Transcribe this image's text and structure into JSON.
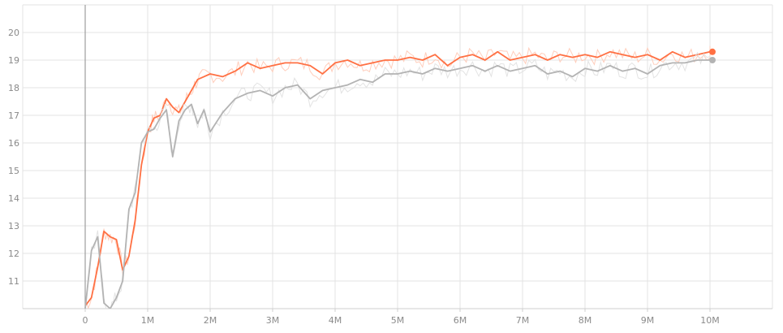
{
  "chart_data": {
    "type": "line",
    "title": "",
    "xlabel": "",
    "ylabel": "",
    "x_ticks": [
      "0",
      "1M",
      "2M",
      "3M",
      "4M",
      "5M",
      "6M",
      "7M",
      "8M",
      "9M",
      "10M"
    ],
    "x_tick_values": [
      0,
      1000000,
      2000000,
      3000000,
      4000000,
      5000000,
      6000000,
      7000000,
      8000000,
      9000000,
      10000000
    ],
    "y_ticks": [
      "11",
      "12",
      "13",
      "14",
      "15",
      "16",
      "17",
      "18",
      "19",
      "20"
    ],
    "y_tick_values": [
      11,
      12,
      13,
      14,
      15,
      16,
      17,
      18,
      19,
      20
    ],
    "xlim": [
      -1000000,
      11000000
    ],
    "ylim": [
      10,
      21
    ],
    "grid": true,
    "series": [
      {
        "color": "#ff7043",
        "raw_color": "#ffc9b5",
        "x": [
          0,
          100000,
          200000,
          300000,
          400000,
          500000,
          600000,
          700000,
          800000,
          900000,
          1000000,
          1100000,
          1200000,
          1300000,
          1400000,
          1500000,
          1600000,
          1700000,
          1800000,
          1900000,
          2000000,
          2200000,
          2400000,
          2600000,
          2800000,
          3000000,
          3200000,
          3400000,
          3600000,
          3800000,
          4000000,
          4200000,
          4400000,
          4600000,
          4800000,
          5000000,
          5200000,
          5400000,
          5600000,
          5800000,
          6000000,
          6200000,
          6400000,
          6600000,
          6800000,
          7000000,
          7200000,
          7400000,
          7600000,
          7800000,
          8000000,
          8200000,
          8400000,
          8600000,
          8800000,
          9000000,
          9200000,
          9400000,
          9600000,
          9800000,
          10000000
        ],
        "y": [
          10.1,
          10.4,
          11.5,
          12.8,
          12.6,
          12.5,
          11.4,
          11.9,
          13.2,
          15.2,
          16.4,
          16.9,
          17.0,
          17.6,
          17.3,
          17.1,
          17.5,
          17.9,
          18.3,
          18.4,
          18.5,
          18.4,
          18.6,
          18.9,
          18.7,
          18.8,
          18.9,
          18.9,
          18.8,
          18.5,
          18.9,
          19.0,
          18.8,
          18.9,
          19.0,
          19.0,
          19.1,
          19.0,
          19.2,
          18.8,
          19.1,
          19.2,
          19.0,
          19.3,
          19.0,
          19.1,
          19.2,
          19.0,
          19.2,
          19.1,
          19.2,
          19.1,
          19.3,
          19.2,
          19.1,
          19.2,
          19.0,
          19.3,
          19.1,
          19.2,
          19.3
        ]
      },
      {
        "color": "#b3b3b3",
        "raw_color": "#e0e0e0",
        "x": [
          0,
          100000,
          200000,
          300000,
          400000,
          500000,
          600000,
          700000,
          800000,
          900000,
          1000000,
          1100000,
          1200000,
          1300000,
          1400000,
          1500000,
          1600000,
          1700000,
          1800000,
          1900000,
          2000000,
          2200000,
          2400000,
          2600000,
          2800000,
          3000000,
          3200000,
          3400000,
          3600000,
          3800000,
          4000000,
          4200000,
          4400000,
          4600000,
          4800000,
          5000000,
          5200000,
          5400000,
          5600000,
          5800000,
          6000000,
          6200000,
          6400000,
          6600000,
          6800000,
          7000000,
          7200000,
          7400000,
          7600000,
          7800000,
          8000000,
          8200000,
          8400000,
          8600000,
          8800000,
          9000000,
          9200000,
          9400000,
          9600000,
          9800000,
          10000000
        ],
        "y": [
          10.0,
          12.1,
          12.6,
          10.2,
          10.0,
          10.4,
          11.0,
          13.6,
          14.2,
          16.0,
          16.4,
          16.5,
          16.9,
          17.2,
          15.5,
          16.8,
          17.2,
          17.4,
          16.7,
          17.2,
          16.4,
          17.1,
          17.6,
          17.8,
          17.9,
          17.7,
          18.0,
          18.1,
          17.6,
          17.9,
          18.0,
          18.1,
          18.3,
          18.2,
          18.5,
          18.5,
          18.6,
          18.5,
          18.7,
          18.6,
          18.7,
          18.8,
          18.6,
          18.8,
          18.6,
          18.7,
          18.8,
          18.5,
          18.6,
          18.4,
          18.7,
          18.6,
          18.8,
          18.6,
          18.7,
          18.5,
          18.8,
          18.9,
          18.9,
          19.0,
          19.0
        ]
      }
    ]
  }
}
